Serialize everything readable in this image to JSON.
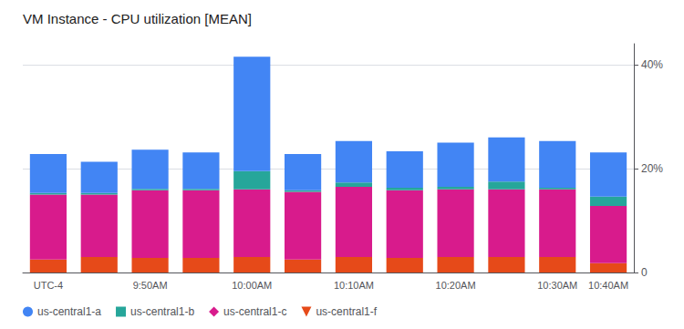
{
  "chart_data": {
    "type": "bar",
    "title": "VM Instance - CPU utilization [MEAN]",
    "categories": [
      "UTC-4",
      null,
      "9:50AM",
      null,
      "10:00AM",
      null,
      "10:10AM",
      null,
      "10:20AM",
      null,
      "10:30AM",
      "10:40AM"
    ],
    "series": [
      {
        "name": "us-central1-a",
        "color": "#4285F4",
        "marker": "circle",
        "values": [
          7.5,
          6.0,
          7.5,
          7.0,
          22.0,
          7.0,
          8.0,
          7.0,
          8.5,
          8.5,
          9.0,
          8.5
        ]
      },
      {
        "name": "us-central1-b",
        "color": "#26A69A",
        "marker": "square",
        "values": [
          0.3,
          0.3,
          0.3,
          0.3,
          3.5,
          0.3,
          0.8,
          0.5,
          0.5,
          1.5,
          0.3,
          1.8
        ]
      },
      {
        "name": "us-central1-c",
        "color": "#D81B8C",
        "marker": "diamond",
        "values": [
          12.5,
          12.0,
          13.0,
          13.0,
          13.0,
          13.0,
          13.5,
          13.0,
          13.0,
          13.0,
          13.0,
          11.0
        ]
      },
      {
        "name": "us-central1-f",
        "color": "#E64A19",
        "marker": "triangle_down",
        "values": [
          2.5,
          3.0,
          2.8,
          2.8,
          3.0,
          2.5,
          3.0,
          2.8,
          3.0,
          3.0,
          3.0,
          1.8
        ]
      }
    ],
    "stacked": true,
    "ylim": [
      0,
      44
    ],
    "yticks": [
      0,
      {
        "value": 20,
        "label": "20%"
      },
      {
        "value": 40,
        "label": "40%"
      }
    ],
    "grid": true,
    "legend": "lower left"
  }
}
